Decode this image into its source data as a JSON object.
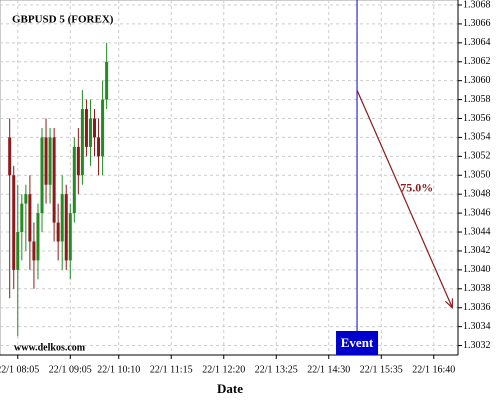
{
  "chart_data": {
    "type": "candlestick",
    "title": "GBPUSD 5 (FOREX)",
    "watermark": "www.delkos.com",
    "xlabel": "Date",
    "up_color": "#228b22",
    "down_color": "#8b1a1a",
    "grid": true,
    "xlim": [
      463,
      1030
    ],
    "xticks": [
      {
        "value": 485,
        "label": "22/1 08:05"
      },
      {
        "value": 550,
        "label": "22/1 09:05"
      },
      {
        "value": 610,
        "label": "22/1 10:10"
      },
      {
        "value": 675,
        "label": "22/1 11:15"
      },
      {
        "value": 740,
        "label": "22/1 12:20"
      },
      {
        "value": 805,
        "label": "22/1 13:25"
      },
      {
        "value": 870,
        "label": "22/1 14:30"
      },
      {
        "value": 935,
        "label": "22/1 15:35"
      },
      {
        "value": 1000,
        "label": "22/1 16:40"
      }
    ],
    "ylim": [
      1.3031,
      1.3068
    ],
    "yticks": [
      1.3032,
      1.3034,
      1.3036,
      1.3038,
      {
        "value": 1.304,
        "label": "1.3040"
      },
      1.3042,
      1.3044,
      1.3046,
      1.3048,
      {
        "value": 1.305,
        "label": "1.3050"
      },
      1.3052,
      1.3054,
      1.3056,
      1.3058,
      {
        "value": 1.306,
        "label": "1.3060"
      },
      1.3062,
      1.3064,
      1.3066,
      1.3068
    ],
    "x": [
      475,
      480,
      485,
      490,
      495,
      500,
      505,
      510,
      515,
      520,
      525,
      530,
      535,
      540,
      545,
      550,
      555,
      560,
      565,
      570,
      575,
      580,
      585,
      590,
      595
    ],
    "open": [
      1.3054,
      1.305,
      1.304,
      1.3044,
      1.3047,
      1.3048,
      1.3043,
      1.3041,
      1.3046,
      1.3054,
      1.3049,
      1.3054,
      1.3045,
      1.3043,
      1.3048,
      1.3041,
      1.3046,
      1.3053,
      1.305,
      1.3057,
      1.3053,
      1.3056,
      1.3054,
      1.3052,
      1.3058
    ],
    "high": [
      1.3056,
      1.3051,
      1.3049,
      1.3048,
      1.3049,
      1.305,
      1.3045,
      1.3047,
      1.3055,
      1.3056,
      1.3055,
      1.3055,
      1.3047,
      1.305,
      1.3049,
      1.3047,
      1.3054,
      1.3055,
      1.3059,
      1.3058,
      1.3058,
      1.3057,
      1.3056,
      1.306,
      1.3064
    ],
    "low": [
      1.3037,
      1.3038,
      1.3033,
      1.3041,
      1.3042,
      1.304,
      1.3038,
      1.3039,
      1.3044,
      1.3047,
      1.3047,
      1.3043,
      1.3041,
      1.304,
      1.304,
      1.3039,
      1.3045,
      1.3048,
      1.3049,
      1.3052,
      1.3051,
      1.3052,
      1.305,
      1.305,
      1.3057
    ],
    "close": [
      1.305,
      1.304,
      1.3044,
      1.3047,
      1.3048,
      1.3043,
      1.3041,
      1.3046,
      1.3054,
      1.3049,
      1.3054,
      1.3045,
      1.3043,
      1.3048,
      1.3041,
      1.3046,
      1.3053,
      1.305,
      1.3057,
      1.3053,
      1.3056,
      1.3054,
      1.3052,
      1.3058,
      1.3062
    ],
    "event": {
      "x": 905,
      "label": "Event",
      "color": "#0000cc"
    },
    "forecast": {
      "start_x": 905,
      "start_y": 1.3059,
      "end_x": 1023,
      "end_y": 1.3036,
      "label": "75.0%",
      "color": "#8b1a1a"
    }
  }
}
